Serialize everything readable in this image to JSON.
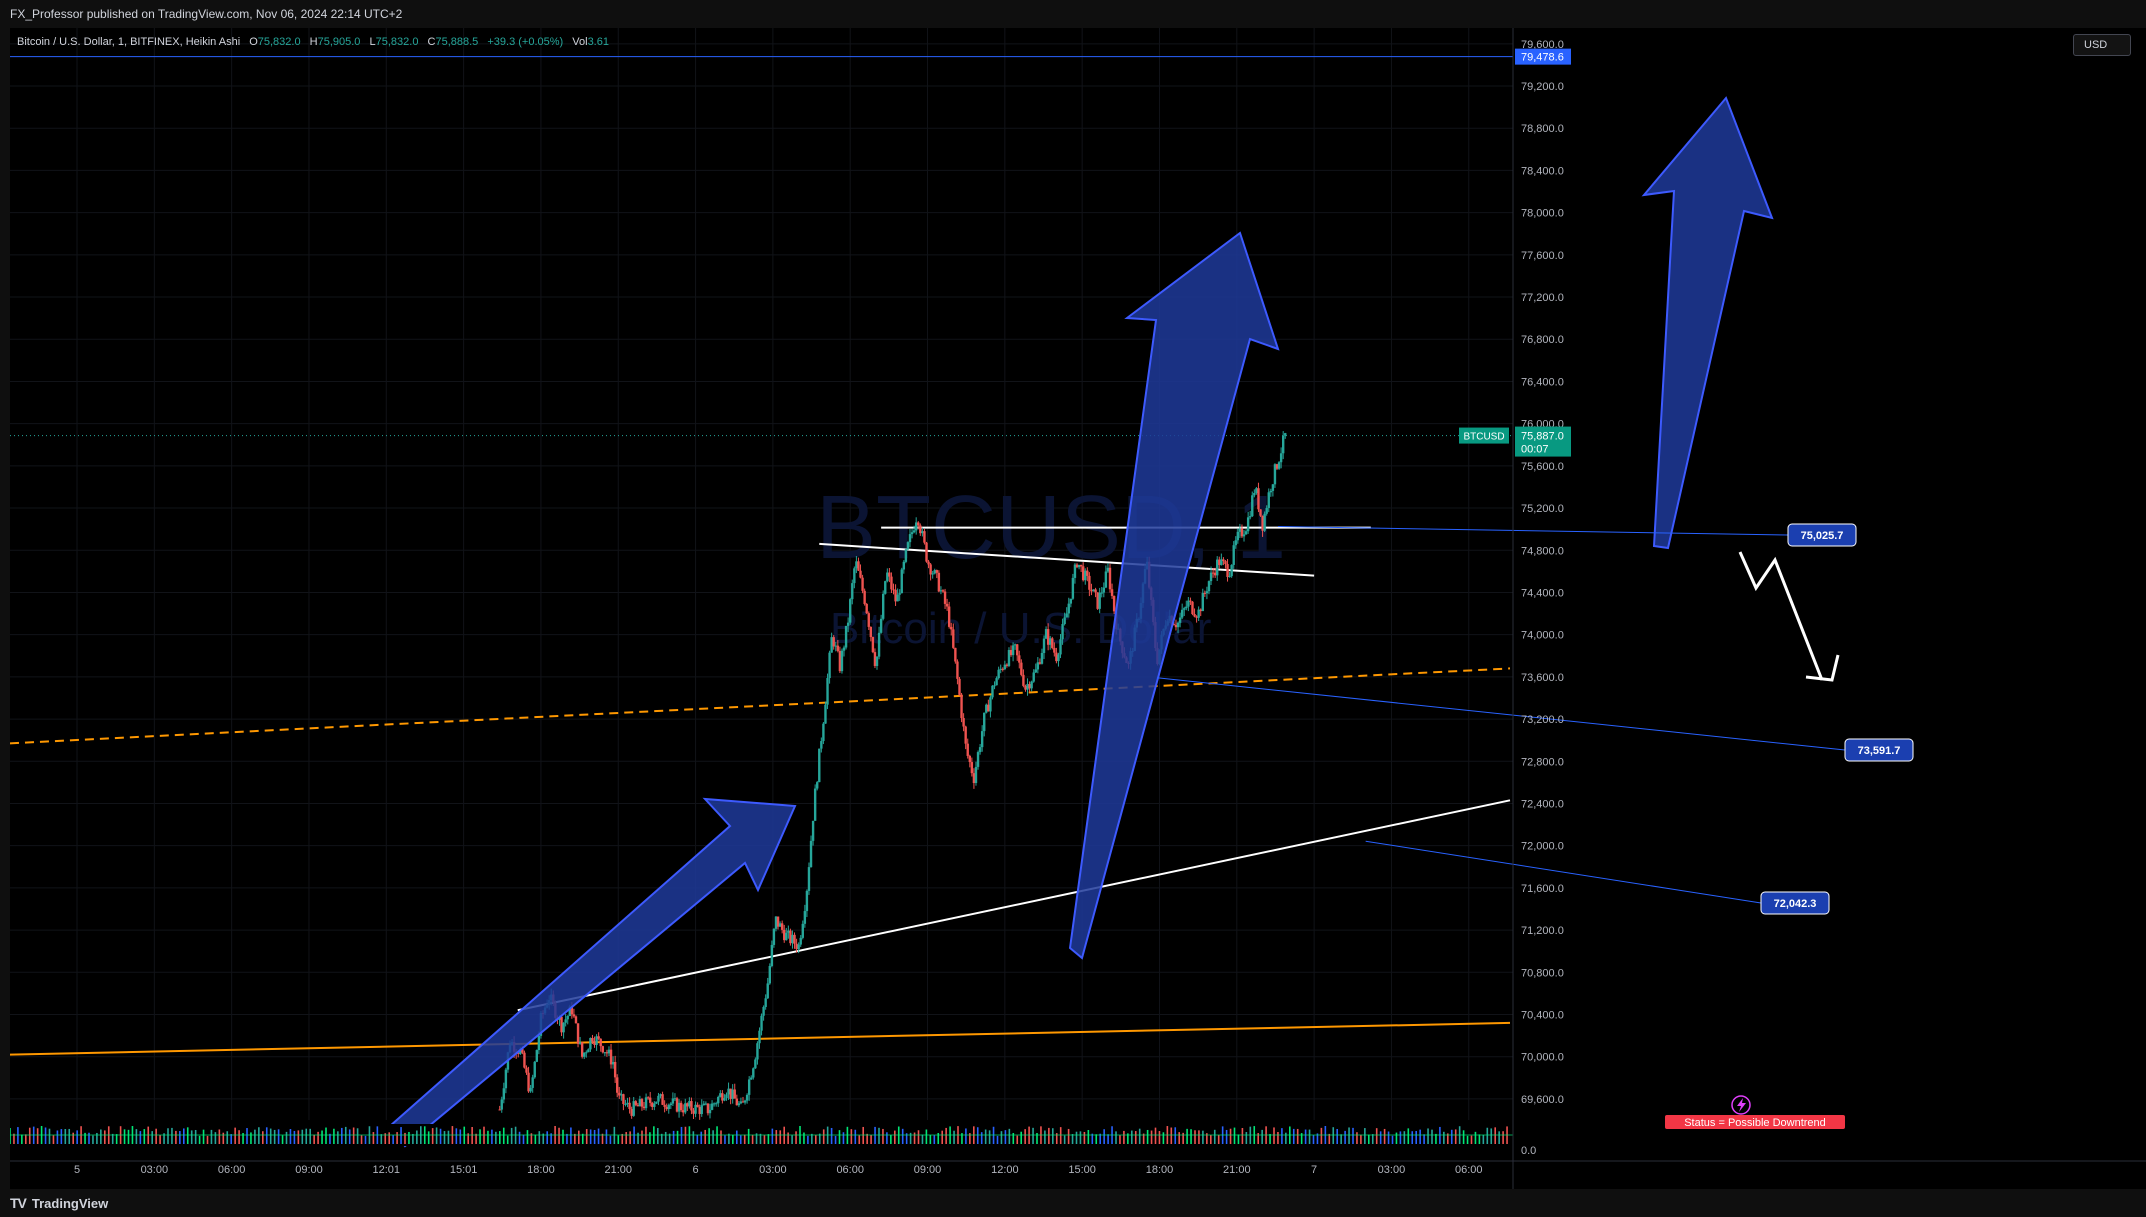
{
  "header": {
    "published_text": "FX_Professor published on TradingView.com, Nov 06, 2024 22:14 UTC+2"
  },
  "legend": {
    "symbol_text": "Bitcoin / U.S. Dollar, 1, BITFINEX, Heikin Ashi",
    "o_label": "O",
    "o_value": "75,832.0",
    "h_label": "H",
    "h_value": "75,905.0",
    "l_label": "L",
    "l_value": "75,832.0",
    "c_label": "C",
    "c_value": "75,888.5",
    "change": "+39.3 (+0.05%)",
    "vol_label": "Vol",
    "vol_value": "3.61"
  },
  "watermark": {
    "symbol": "BTCUSD, 1",
    "name": "Bitcoin / U.S. Dollar"
  },
  "currency_button": "USD",
  "footer": {
    "brand": "TradingView"
  },
  "colors": {
    "background": "#000000",
    "up_candle": "#26a69a",
    "down_candle": "#ef5350",
    "arrow_fill": "#1e3a9a",
    "arrow_stroke": "#3d5afe",
    "label_blue": "#1b3fb0",
    "orange": "#ff9800",
    "white": "#ffffff"
  },
  "status_label": "Status = Possible Downtrend",
  "alert_icon": "lightning-icon",
  "chart_data": {
    "type": "candlestick",
    "style": "Heikin Ashi",
    "symbol": "BTCUSD",
    "exchange": "BITFINEX",
    "interval": "1",
    "ylim": [
      69400,
      79750
    ],
    "y_ticks": [
      69600,
      70000,
      70400,
      70800,
      71200,
      71600,
      72000,
      72400,
      72800,
      73200,
      73600,
      74000,
      74400,
      74800,
      75200,
      75600,
      76000,
      76400,
      76800,
      77200,
      77600,
      78000,
      78400,
      78800,
      79200,
      79600
    ],
    "y_tick_labels": [
      "69,600.0",
      "70,000.0",
      "70,400.0",
      "70,800.0",
      "71,200.0",
      "71,600.0",
      "72,000.0",
      "72,400.0",
      "72,800.0",
      "73,200.0",
      "73,600.0",
      "74,000.0",
      "74,400.0",
      "74,800.0",
      "75,200.0",
      "75,600.0",
      "76,000.0",
      "76,400.0",
      "76,800.0",
      "77,200.0",
      "77,600.0",
      "78,000.0",
      "78,400.0",
      "78,800.0",
      "79,200.0",
      "79,600.0"
    ],
    "x_tick_labels": [
      "5",
      "03:00",
      "06:00",
      "09:00",
      "12:01",
      "15:01",
      "18:00",
      "21:00",
      "6",
      "03:00",
      "06:00",
      "09:00",
      "12:00",
      "15:00",
      "18:00",
      "21:00",
      "7",
      "03:00",
      "06:00"
    ],
    "x_tick_hours": [
      0,
      3,
      6,
      9,
      12,
      15,
      18,
      21,
      24,
      27,
      30,
      33,
      36,
      39,
      42,
      45,
      48,
      51,
      54
    ],
    "x_range_hours": [
      -2.6,
      55.6
    ],
    "price_path": [
      [
        16.4,
        69500
      ],
      [
        16.8,
        70150
      ],
      [
        17.2,
        70050
      ],
      [
        17.6,
        69650
      ],
      [
        18.0,
        70350
      ],
      [
        18.3,
        70580
      ],
      [
        18.8,
        70300
      ],
      [
        19.2,
        70450
      ],
      [
        19.6,
        70000
      ],
      [
        20.0,
        70200
      ],
      [
        20.4,
        70100
      ],
      [
        20.8,
        69950
      ],
      [
        21.0,
        69600
      ],
      [
        21.5,
        69500
      ],
      [
        22.5,
        69600
      ],
      [
        23.5,
        69520
      ],
      [
        24.5,
        69500
      ],
      [
        25.2,
        69700
      ],
      [
        25.8,
        69500
      ],
      [
        26.3,
        70000
      ],
      [
        26.8,
        70700
      ],
      [
        27.1,
        71300
      ],
      [
        27.5,
        71150
      ],
      [
        28.0,
        71050
      ],
      [
        28.3,
        71550
      ],
      [
        28.6,
        72400
      ],
      [
        29.0,
        73300
      ],
      [
        29.3,
        74000
      ],
      [
        29.6,
        73700
      ],
      [
        29.9,
        74100
      ],
      [
        30.2,
        74700
      ],
      [
        30.6,
        74300
      ],
      [
        31.0,
        73700
      ],
      [
        31.4,
        74600
      ],
      [
        31.8,
        74300
      ],
      [
        32.2,
        74800
      ],
      [
        32.6,
        75150
      ],
      [
        33.0,
        74700
      ],
      [
        33.4,
        74500
      ],
      [
        33.8,
        74200
      ],
      [
        34.2,
        73500
      ],
      [
        34.5,
        72900
      ],
      [
        34.8,
        72650
      ],
      [
        35.2,
        73200
      ],
      [
        35.6,
        73550
      ],
      [
        36.0,
        73750
      ],
      [
        36.4,
        73850
      ],
      [
        36.8,
        73500
      ],
      [
        37.2,
        73650
      ],
      [
        37.6,
        74000
      ],
      [
        38.0,
        73800
      ],
      [
        38.4,
        74200
      ],
      [
        38.8,
        74700
      ],
      [
        39.2,
        74500
      ],
      [
        39.6,
        74300
      ],
      [
        40.0,
        74600
      ],
      [
        40.4,
        74000
      ],
      [
        40.8,
        73700
      ],
      [
        41.2,
        74200
      ],
      [
        41.5,
        74700
      ],
      [
        41.9,
        73750
      ],
      [
        42.3,
        74200
      ],
      [
        42.7,
        74100
      ],
      [
        43.1,
        74300
      ],
      [
        43.5,
        74200
      ],
      [
        43.9,
        74500
      ],
      [
        44.3,
        74700
      ],
      [
        44.7,
        74600
      ],
      [
        45.0,
        74900
      ],
      [
        45.4,
        75050
      ],
      [
        45.7,
        75400
      ],
      [
        46.0,
        75050
      ],
      [
        46.3,
        75400
      ],
      [
        46.6,
        75650
      ],
      [
        46.9,
        75900
      ]
    ],
    "current_price": {
      "symbol": "BTCUSD",
      "value": 75887.0,
      "label": "75,887.0",
      "countdown": "00:07"
    },
    "horizontal_line": {
      "value": 79478.6,
      "label": "79,478.6"
    },
    "price_labels": [
      {
        "label": "75,025.7",
        "value": 75025.7
      },
      {
        "label": "73,591.7",
        "value": 73591.7
      },
      {
        "label": "72,042.3",
        "value": 72042.3
      }
    ],
    "trendlines": [
      {
        "name": "rising support",
        "color": "white",
        "from": [
          17.1,
          70440
        ],
        "to": [
          55.6,
          72430
        ]
      },
      {
        "name": "horizontal resistance",
        "color": "white",
        "from": [
          31.2,
          75015
        ],
        "to": [
          50.2,
          75015
        ]
      },
      {
        "name": "descending resistance",
        "color": "white",
        "from": [
          28.8,
          74860
        ],
        "to": [
          48.0,
          74560
        ]
      },
      {
        "name": "dashed support",
        "color": "orange",
        "dashed": true,
        "from": [
          -2.6,
          72970
        ],
        "to": [
          55.6,
          73680
        ]
      },
      {
        "name": "long support",
        "color": "orange",
        "from": [
          -2.6,
          70020
        ],
        "to": [
          55.6,
          70320
        ]
      }
    ],
    "grid": true,
    "legend_position": "top-left"
  }
}
